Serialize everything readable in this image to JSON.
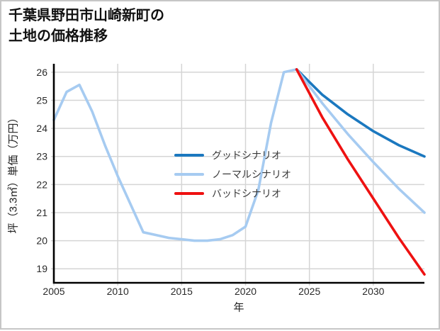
{
  "title": {
    "line1": "千葉県野田市山崎新町の",
    "line2": "土地の価格推移"
  },
  "colors": {
    "grid": "#d5d5d5",
    "spine": "#000000",
    "tick_text": "#2a2a2a",
    "good": "#1b78bf",
    "normal": "#a6cbf1",
    "bad": "#ee1111"
  },
  "chart_data": {
    "type": "line",
    "title": "千葉県野田市山崎新町の土地の価格推移",
    "xlabel": "年",
    "ylabel": "坪（3.3㎡）単価（万円）",
    "xlim": [
      2005,
      2034
    ],
    "ylim": [
      18.5,
      26.3
    ],
    "x_ticks": [
      2005,
      2010,
      2015,
      2020,
      2025,
      2030
    ],
    "y_ticks": [
      19,
      20,
      21,
      22,
      23,
      24,
      25,
      26
    ],
    "grid": true,
    "legend_position": "center",
    "history": {
      "color": "#a6cbf1",
      "x": [
        2005,
        2006,
        2007,
        2008,
        2009,
        2010,
        2011,
        2012,
        2013,
        2014,
        2015,
        2016,
        2017,
        2018,
        2019,
        2020,
        2021,
        2022,
        2023,
        2024
      ],
      "values": [
        24.3,
        25.3,
        25.55,
        24.6,
        23.4,
        22.3,
        21.3,
        20.3,
        20.2,
        20.1,
        20.05,
        20.0,
        20.0,
        20.05,
        20.2,
        20.5,
        21.8,
        24.2,
        26.0,
        26.1
      ]
    },
    "series": [
      {
        "name": "グッドシナリオ",
        "color": "#1b78bf",
        "x": [
          2024,
          2026,
          2028,
          2030,
          2032,
          2034
        ],
        "values": [
          26.1,
          25.2,
          24.5,
          23.9,
          23.4,
          23.0
        ]
      },
      {
        "name": "ノーマルシナリオ",
        "color": "#a6cbf1",
        "x": [
          2024,
          2026,
          2028,
          2030,
          2032,
          2034
        ],
        "values": [
          26.1,
          24.9,
          23.8,
          22.8,
          21.85,
          21.0
        ]
      },
      {
        "name": "バッドシナリオ",
        "color": "#ee1111",
        "x": [
          2024,
          2026,
          2028,
          2030,
          2032,
          2034
        ],
        "values": [
          26.1,
          24.4,
          22.9,
          21.5,
          20.1,
          18.8
        ]
      }
    ]
  }
}
